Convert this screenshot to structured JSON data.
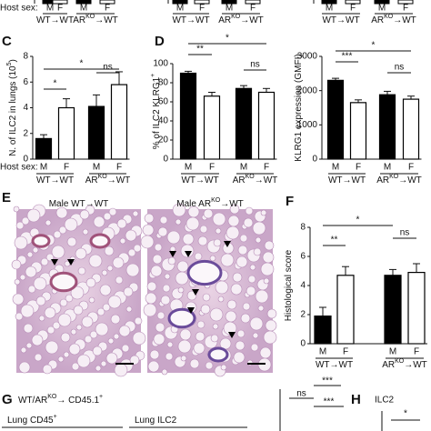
{
  "top_strip": {
    "host_sex": "Host sex:",
    "categories": [
      "M",
      "F",
      "M",
      "F",
      "M",
      "F",
      "M",
      "F",
      "M",
      "F",
      "M",
      "F"
    ],
    "groups": [
      [
        "WT→WT"
      ],
      [
        "AR",
        "KO",
        "→WT"
      ],
      [
        "WT→WT"
      ],
      [
        "AR",
        "KO",
        "→WT"
      ],
      [
        "WT→WT"
      ],
      [
        "AR",
        "KO",
        "→WT"
      ]
    ]
  },
  "panel_labels": [
    "C",
    "D",
    "E",
    "F",
    "G",
    "H"
  ],
  "chart_data": [
    {
      "type": "bar",
      "y_label": [
        "N. of ILC2 in lungs (10",
        "5",
        ")"
      ],
      "host_sex": "Host sex:",
      "categories": [
        "M",
        "F",
        "M",
        "F"
      ],
      "groups": [
        [
          "WT→WT"
        ],
        [
          "AR",
          "KO",
          "→WT"
        ]
      ],
      "values": [
        1.6,
        4.0,
        4.1,
        5.8
      ],
      "errors": [
        0.3,
        0.7,
        0.9,
        1.0
      ],
      "colors": [
        "#000000",
        "#ffffff",
        "#000000",
        "#ffffff"
      ],
      "ylim": [
        0,
        8
      ],
      "yticks": [
        0,
        2,
        4,
        6,
        8
      ],
      "significance": [
        {
          "from": 0,
          "to": 1,
          "label": "*"
        },
        {
          "from": 0,
          "to": 3,
          "label": "*"
        },
        {
          "from": 2,
          "to": 3,
          "label": "ns"
        }
      ]
    },
    {
      "type": "bar",
      "y_label": [
        "% of ILC2 KLRG1",
        "+"
      ],
      "categories": [
        "M",
        "F",
        "M",
        "F"
      ],
      "groups": [
        [
          "WT→WT"
        ],
        [
          "AR",
          "KO",
          "→WT"
        ]
      ],
      "values": [
        90,
        66,
        74,
        70
      ],
      "errors": [
        2,
        4,
        3,
        4
      ],
      "colors": [
        "#000000",
        "#ffffff",
        "#000000",
        "#ffffff"
      ],
      "ylim": [
        0,
        100
      ],
      "yticks": [
        0,
        20,
        40,
        60,
        80,
        100
      ],
      "significance": [
        {
          "from": 0,
          "to": 1,
          "label": "**"
        },
        {
          "from": 0,
          "to": 3,
          "label": "*"
        },
        {
          "from": 2,
          "to": 3,
          "label": "ns"
        }
      ]
    },
    {
      "type": "bar",
      "y_label": [
        "KLRG1 expression (GMFI)"
      ],
      "categories": [
        "M",
        "F",
        "M",
        "F"
      ],
      "groups": [
        [
          "WT→WT"
        ],
        [
          "AR",
          "KO",
          "→WT"
        ]
      ],
      "values": [
        2300,
        1650,
        1880,
        1750
      ],
      "errors": [
        60,
        80,
        100,
        90
      ],
      "colors": [
        "#000000",
        "#ffffff",
        "#000000",
        "#ffffff"
      ],
      "ylim": [
        0,
        3000
      ],
      "yticks": [
        0,
        1000,
        2000,
        3000
      ],
      "significance": [
        {
          "from": 0,
          "to": 1,
          "label": "***"
        },
        {
          "from": 0,
          "to": 3,
          "label": "*"
        },
        {
          "from": 2,
          "to": 3,
          "label": "ns"
        }
      ]
    },
    {
      "type": "bar",
      "y_label": [
        "Histological score"
      ],
      "categories": [
        "M",
        "F",
        "M",
        "F"
      ],
      "groups": [
        [
          "WT→WT"
        ],
        [
          "AR",
          "KO",
          "→WT"
        ]
      ],
      "values": [
        1.9,
        4.7,
        4.7,
        4.9
      ],
      "errors": [
        0.6,
        0.6,
        0.4,
        0.6
      ],
      "colors": [
        "#000000",
        "#ffffff",
        "#000000",
        "#ffffff"
      ],
      "ylim": [
        0,
        8
      ],
      "yticks": [
        0,
        2,
        4,
        6,
        8
      ],
      "significance": [
        {
          "from": 0,
          "to": 1,
          "label": "**"
        },
        {
          "from": 0,
          "to": 2,
          "label": "*"
        },
        {
          "from": 2,
          "to": 3,
          "label": "ns"
        }
      ]
    }
  ],
  "panel_e": {
    "images": [
      {
        "title": [
          "Male  WT→WT"
        ]
      },
      {
        "title": [
          "Male  AR",
          "KO",
          "→WT"
        ]
      }
    ]
  },
  "panel_g": {
    "title": [
      "WT/AR",
      "KO",
      "→ CD45.1",
      "+"
    ],
    "labels": [
      [
        "Lung CD45",
        "+"
      ],
      [
        "Lung ILC2"
      ]
    ],
    "significance": [
      "***",
      "ns",
      "***"
    ]
  },
  "panel_h": {
    "title": "ILC2",
    "significance": "*"
  }
}
